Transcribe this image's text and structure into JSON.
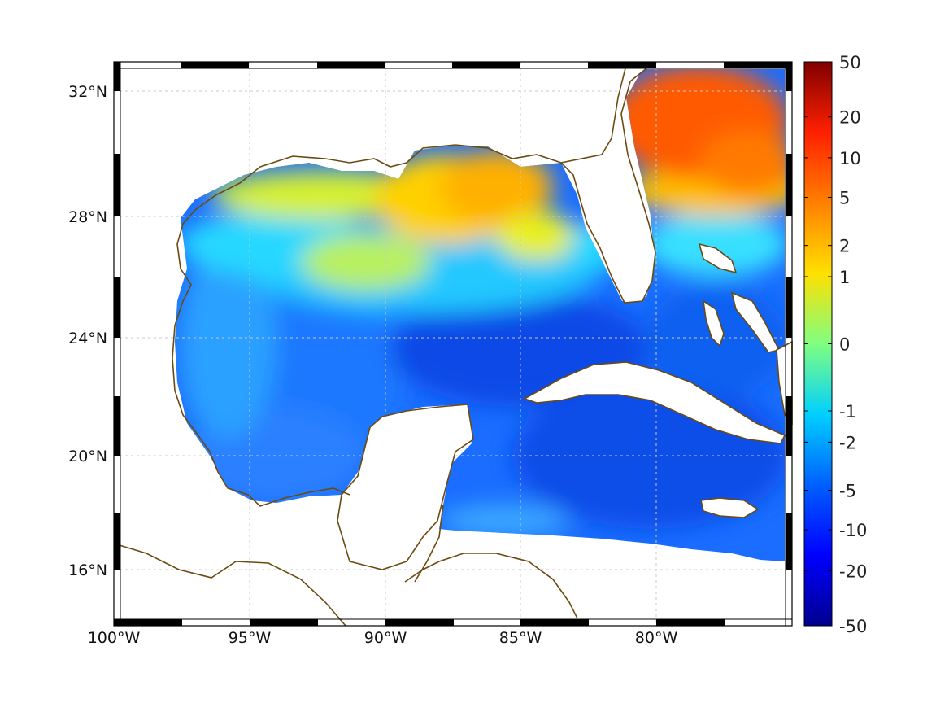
{
  "chart_data": {
    "type": "heatmap",
    "title": "",
    "xlabel": "",
    "ylabel": "",
    "x_ticks": [
      "100°W",
      "95°W",
      "90°W",
      "85°W",
      "80°W"
    ],
    "y_ticks": [
      "32°N",
      "28°N",
      "24°N",
      "20°N",
      "16°N"
    ],
    "colorbar": {
      "ticks": [
        "50",
        "20",
        "10",
        "5",
        "2",
        "1",
        "0",
        "-1",
        "-2",
        "-5",
        "-10",
        "-20",
        "-50"
      ],
      "range": [
        -50,
        50
      ],
      "scale": "symmetric-log",
      "colormap": "jet"
    },
    "lon_range": [
      -100,
      -75
    ],
    "lat_range": [
      14.5,
      33
    ],
    "grid": true,
    "coastline_color": "#6b4a10",
    "field": [
      {
        "region": "North Atlantic off Georgia/Carolina",
        "value": 8
      },
      {
        "region": "Northeast Gulf (Florida Panhandle)",
        "value": 3
      },
      {
        "region": "Louisiana/Texas shelf",
        "value": 1.5
      },
      {
        "region": "Central Gulf",
        "value": -3
      },
      {
        "region": "Southern Gulf / Bay of Campeche",
        "value": -5
      },
      {
        "region": "Western Caribbean",
        "value": -6
      },
      {
        "region": "Atlantic south of 28N",
        "value": -5
      }
    ]
  }
}
